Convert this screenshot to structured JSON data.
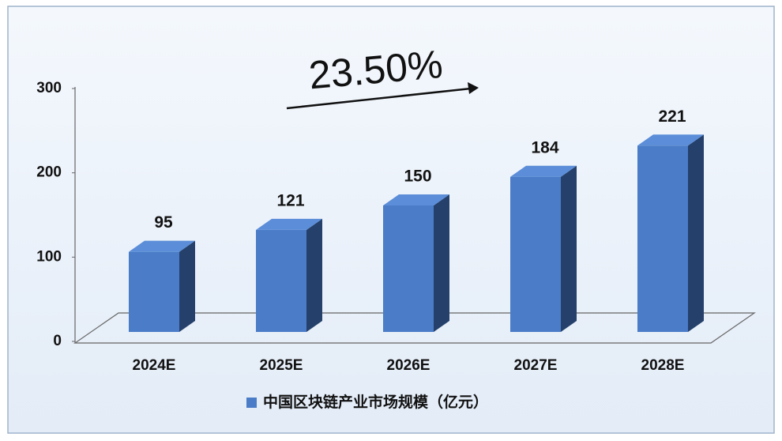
{
  "chart_data": {
    "type": "bar",
    "annotation": "23.50%",
    "categories": [
      "2024E",
      "2025E",
      "2026E",
      "2027E",
      "2028E"
    ],
    "series": [
      {
        "name": "中国区块链产业市场规模（亿元）",
        "color": "#4a7cc8",
        "values": [
          95,
          121,
          150,
          184,
          221
        ]
      }
    ],
    "ylim": [
      0,
      300
    ],
    "yticks": [
      0,
      100,
      200,
      300
    ]
  }
}
